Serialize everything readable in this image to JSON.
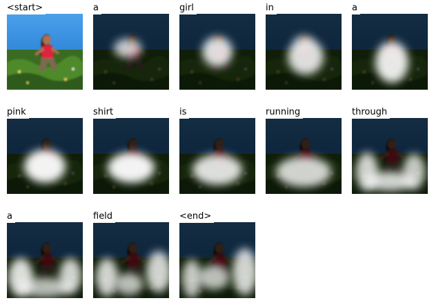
{
  "caption_words": [
    "<start>",
    "a",
    "girl",
    "in",
    "a",
    "pink",
    "shirt",
    "is",
    "running",
    "through",
    "a",
    "field",
    "<end>"
  ],
  "panels": [
    {
      "word": "<start>",
      "attention": "none"
    },
    {
      "word": "a",
      "attention": "small blob on girl's upper body"
    },
    {
      "word": "girl",
      "attention": "blob on girl"
    },
    {
      "word": "in",
      "attention": "blob on girl's torso"
    },
    {
      "word": "a",
      "attention": "blob on girl's torso and lower body"
    },
    {
      "word": "pink",
      "attention": "blob below girl"
    },
    {
      "word": "shirt",
      "attention": "arc below girl"
    },
    {
      "word": "is",
      "attention": "arc below girl"
    },
    {
      "word": "running",
      "attention": "wide arc below girl"
    },
    {
      "word": "through",
      "attention": "wide arc on grass"
    },
    {
      "word": "a",
      "attention": "wide arc on grass"
    },
    {
      "word": "field",
      "attention": "arcs on grass"
    },
    {
      "word": "<end>",
      "attention": "arcs on grass"
    }
  ],
  "colors": {
    "sky": "#2f86d8",
    "grass": "#3a6b22",
    "shirt": "#e0203c",
    "overlay": "#000000"
  }
}
